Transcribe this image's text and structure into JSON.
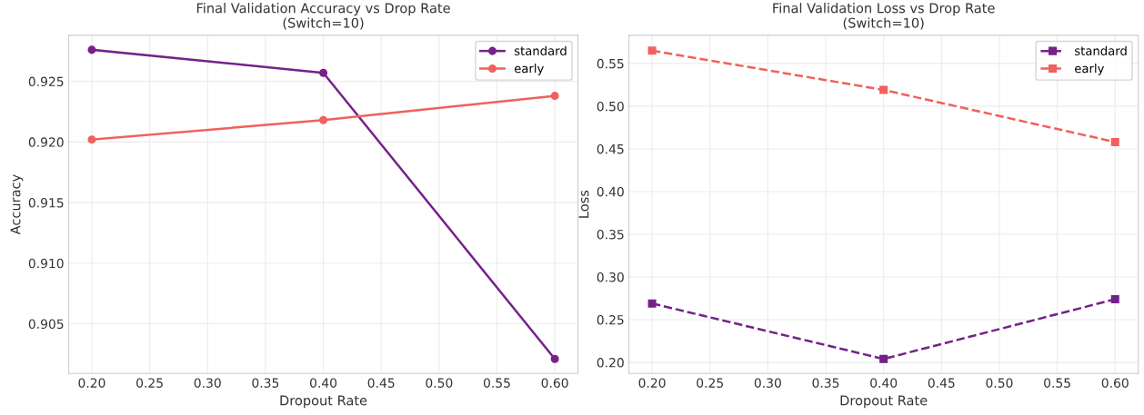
{
  "chart_data": [
    {
      "type": "line",
      "title": "Final Validation Accuracy vs Drop Rate\n(Switch=10)",
      "xlabel": "Dropout Rate",
      "ylabel": "Accuracy",
      "x": [
        0.2,
        0.4,
        0.6
      ],
      "series": [
        {
          "name": "standard",
          "color": "#76218a",
          "values": [
            0.9276,
            0.9257,
            0.9021
          ]
        },
        {
          "name": "early",
          "color": "#f0605d",
          "values": [
            0.9202,
            0.9218,
            0.9238
          ]
        }
      ],
      "xlim": [
        0.18,
        0.62
      ],
      "xticks": [
        {
          "value": 0.2,
          "label": "0.20"
        },
        {
          "value": 0.25,
          "label": "0.25"
        },
        {
          "value": 0.3,
          "label": "0.30"
        },
        {
          "value": 0.35,
          "label": "0.35"
        },
        {
          "value": 0.4,
          "label": "0.40"
        },
        {
          "value": 0.45,
          "label": "0.45"
        },
        {
          "value": 0.5,
          "label": "0.50"
        },
        {
          "value": 0.55,
          "label": "0.55"
        },
        {
          "value": 0.6,
          "label": "0.60"
        }
      ],
      "ylim": [
        0.9009,
        0.9288
      ],
      "yticks": [
        0.905,
        {
          "value": 0.91,
          "label": "0.910"
        },
        0.915,
        {
          "value": 0.92,
          "label": "0.920"
        },
        0.925
      ],
      "grid": true,
      "legend": "top right",
      "marker": "circle",
      "line_style": "solid"
    },
    {
      "type": "line",
      "title": "Final Validation Loss vs Drop Rate\n(Switch=10)",
      "xlabel": "Dropout Rate",
      "ylabel": "Loss",
      "x": [
        0.2,
        0.4,
        0.6
      ],
      "series": [
        {
          "name": "standard",
          "color": "#76218a",
          "values": [
            0.269,
            0.204,
            0.274
          ]
        },
        {
          "name": "early",
          "color": "#f0605d",
          "values": [
            0.565,
            0.519,
            0.458
          ]
        }
      ],
      "xlim": [
        0.18,
        0.62
      ],
      "xticks": [
        {
          "value": 0.2,
          "label": "0.20"
        },
        {
          "value": 0.25,
          "label": "0.25"
        },
        {
          "value": 0.3,
          "label": "0.30"
        },
        {
          "value": 0.35,
          "label": "0.35"
        },
        {
          "value": 0.4,
          "label": "0.40"
        },
        {
          "value": 0.45,
          "label": "0.45"
        },
        {
          "value": 0.5,
          "label": "0.50"
        },
        {
          "value": 0.55,
          "label": "0.55"
        },
        {
          "value": 0.6,
          "label": "0.60"
        }
      ],
      "ylim": [
        0.187,
        0.583
      ],
      "yticks": [
        {
          "value": 0.2,
          "label": "0.20"
        },
        0.25,
        {
          "value": 0.3,
          "label": "0.30"
        },
        0.35,
        {
          "value": 0.4,
          "label": "0.40"
        },
        0.45,
        {
          "value": 0.5,
          "label": "0.50"
        },
        0.55
      ],
      "grid": true,
      "legend": "top right",
      "marker": "square",
      "line_style": "dashed"
    }
  ]
}
